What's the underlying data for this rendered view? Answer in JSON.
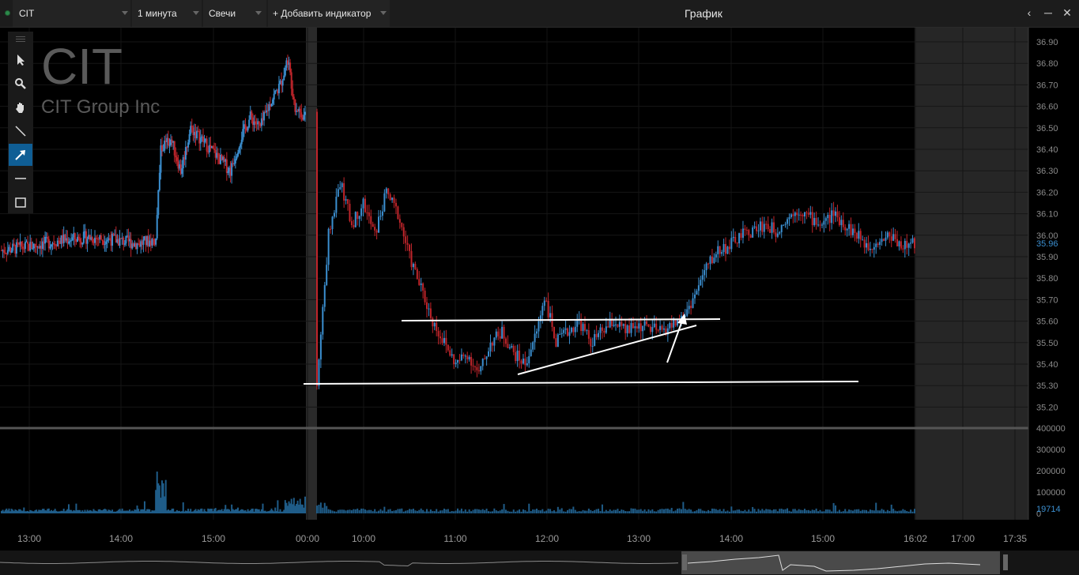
{
  "toolbar": {
    "symbol": "CIT",
    "interval": "1 минута",
    "chart_type": "Свечи",
    "add_indicator": "+ Добавить индикатор",
    "window_title": "График"
  },
  "watermark": {
    "symbol": "CIT",
    "company": "CIT Group Inc"
  },
  "tools": [
    "cursor-icon",
    "zoom-icon",
    "hand-icon",
    "line-icon",
    "arrow-icon",
    "horizontal-line-icon",
    "rectangle-icon"
  ],
  "colors": {
    "up": "#3b8fd0",
    "down": "#c0252b",
    "active_tool": "#0f5e95",
    "price_label": "#3b8fd0"
  },
  "chart_data": {
    "type": "candlestick",
    "price_axis": {
      "ticks": [
        "36.90",
        "36.80",
        "36.70",
        "36.60",
        "36.50",
        "36.40",
        "36.30",
        "36.20",
        "36.10",
        "36.00",
        "35.90",
        "35.80",
        "35.70",
        "35.60",
        "35.50",
        "35.40",
        "35.30",
        "35.20"
      ],
      "ylim": [
        35.15,
        36.95
      ],
      "last_price": "35.96"
    },
    "volume_axis": {
      "ticks": [
        "400000",
        "300000",
        "200000",
        "100000",
        "0"
      ],
      "last_volume": "19714"
    },
    "time_axis": {
      "ticks": [
        "13:00",
        "14:00",
        "15:00",
        "00:00",
        "10:00",
        "11:00",
        "12:00",
        "13:00",
        "14:00",
        "15:00",
        "16:02",
        "17:00",
        "17:35"
      ]
    },
    "price_path": [
      [
        0,
        35.93
      ],
      [
        12,
        35.95
      ],
      [
        25,
        35.98
      ],
      [
        35,
        35.99
      ],
      [
        45,
        35.98
      ],
      [
        55,
        35.96
      ],
      [
        62,
        35.98
      ],
      [
        64,
        36.4
      ],
      [
        68,
        36.45
      ],
      [
        72,
        36.3
      ],
      [
        76,
        36.5
      ],
      [
        80,
        36.45
      ],
      [
        84,
        36.4
      ],
      [
        88,
        36.35
      ],
      [
        92,
        36.3
      ],
      [
        96,
        36.45
      ],
      [
        100,
        36.55
      ],
      [
        104,
        36.5
      ],
      [
        108,
        36.62
      ],
      [
        112,
        36.7
      ],
      [
        115,
        36.82
      ],
      [
        118,
        36.6
      ],
      [
        122,
        36.55
      ],
      [
        128,
        35.3
      ],
      [
        131,
        36.0
      ],
      [
        134,
        36.25
      ],
      [
        137,
        36.05
      ],
      [
        140,
        36.15
      ],
      [
        143,
        36.0
      ],
      [
        146,
        36.2
      ],
      [
        149,
        36.1
      ],
      [
        152,
        35.9
      ],
      [
        155,
        35.75
      ],
      [
        158,
        35.6
      ],
      [
        161,
        35.5
      ],
      [
        164,
        35.4
      ],
      [
        167,
        35.45
      ],
      [
        170,
        35.35
      ],
      [
        173,
        35.5
      ],
      [
        176,
        35.55
      ],
      [
        179,
        35.45
      ],
      [
        182,
        35.4
      ],
      [
        185,
        35.55
      ],
      [
        187,
        35.72
      ],
      [
        190,
        35.5
      ],
      [
        193,
        35.55
      ],
      [
        196,
        35.6
      ],
      [
        199,
        35.5
      ],
      [
        202,
        35.55
      ],
      [
        205,
        35.6
      ],
      [
        208,
        35.55
      ],
      [
        211,
        35.58
      ],
      [
        214,
        35.57
      ],
      [
        217,
        35.55
      ],
      [
        220,
        35.58
      ],
      [
        223,
        35.62
      ],
      [
        226,
        35.72
      ],
      [
        229,
        35.85
      ],
      [
        232,
        35.93
      ],
      [
        235,
        35.95
      ],
      [
        238,
        36.0
      ],
      [
        241,
        36.02
      ],
      [
        244,
        36.05
      ],
      [
        247,
        36.02
      ],
      [
        250,
        36.08
      ],
      [
        253,
        36.12
      ],
      [
        256,
        36.08
      ],
      [
        259,
        36.05
      ],
      [
        262,
        36.1
      ],
      [
        265,
        36.05
      ],
      [
        268,
        36.0
      ],
      [
        271,
        35.95
      ],
      [
        274,
        35.98
      ],
      [
        277,
        36.0
      ],
      [
        280,
        35.95
      ],
      [
        283,
        35.96
      ]
    ],
    "annotations": [
      {
        "type": "line",
        "label": "resistance",
        "from": [
          "11:00",
          "35.60"
        ],
        "to": [
          "14:00",
          "35.60"
        ]
      },
      {
        "type": "line",
        "label": "support",
        "from": [
          "00:00",
          "35.33"
        ],
        "to": [
          "15:30",
          "35.33"
        ]
      },
      {
        "type": "line",
        "label": "rising-trendline",
        "from": [
          "11:45",
          "35.35"
        ],
        "to": [
          "13:40",
          "35.57"
        ]
      },
      {
        "type": "arrow",
        "label": "breakout-arrow"
      }
    ]
  }
}
